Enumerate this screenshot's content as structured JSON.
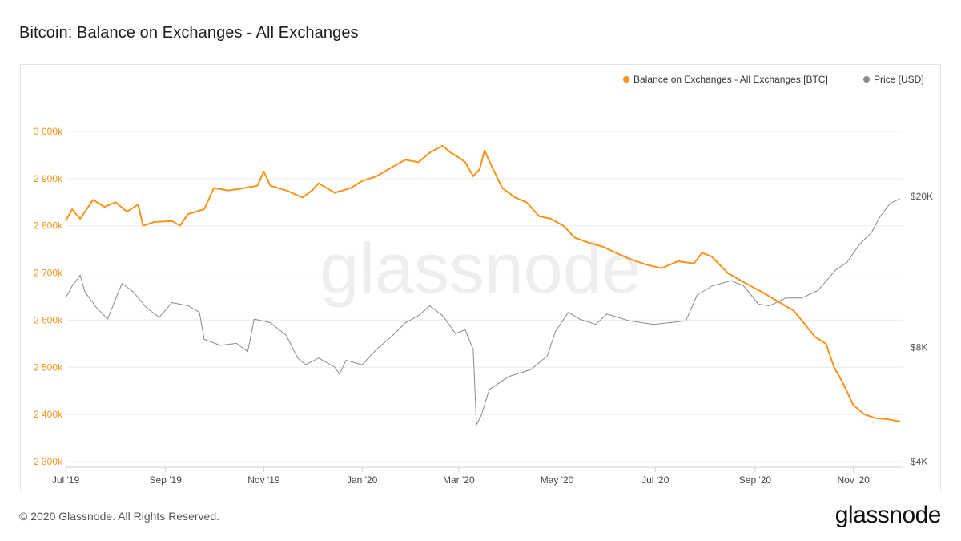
{
  "title": "Bitcoin: Balance on Exchanges - All Exchanges",
  "footer": "© 2020 Glassnode. All Rights Reserved.",
  "brand": "glassnode",
  "watermark": "glassnode",
  "colors": {
    "balance": "#f7931a",
    "price": "#8a8a8a",
    "grid": "#ececec"
  },
  "chart_data": {
    "type": "line",
    "legend_position": "top-right",
    "grid": true,
    "x_tick_labels": [
      "Jul '19",
      "Sep '19",
      "Nov '19",
      "Jan '20",
      "Mar '20",
      "May '20",
      "Jul '20",
      "Sep '20",
      "Nov '20"
    ],
    "y_left": {
      "ticks": [
        "2 300k",
        "2 400k",
        "2 500k",
        "2 600k",
        "2 700k",
        "2 800k",
        "2 900k",
        "3 000k"
      ],
      "range": [
        2300000,
        3000000
      ]
    },
    "y_right": {
      "ticks": [
        "$4K",
        "$8K",
        "$20K"
      ],
      "scale": "log"
    },
    "series": [
      {
        "name": "Balance on Exchanges - All Exchanges [BTC]",
        "axis": "left",
        "points": [
          [
            "2019-07-01",
            2810000
          ],
          [
            "2019-07-05",
            2835000
          ],
          [
            "2019-07-10",
            2815000
          ],
          [
            "2019-07-18",
            2855000
          ],
          [
            "2019-07-25",
            2840000
          ],
          [
            "2019-08-01",
            2850000
          ],
          [
            "2019-08-08",
            2830000
          ],
          [
            "2019-08-15",
            2845000
          ],
          [
            "2019-08-18",
            2800000
          ],
          [
            "2019-08-25",
            2808000
          ],
          [
            "2019-09-05",
            2810000
          ],
          [
            "2019-09-10",
            2800000
          ],
          [
            "2019-09-15",
            2825000
          ],
          [
            "2019-09-25",
            2835000
          ],
          [
            "2019-10-01",
            2880000
          ],
          [
            "2019-10-10",
            2875000
          ],
          [
            "2019-10-20",
            2880000
          ],
          [
            "2019-10-28",
            2885000
          ],
          [
            "2019-11-01",
            2915000
          ],
          [
            "2019-11-05",
            2885000
          ],
          [
            "2019-11-15",
            2875000
          ],
          [
            "2019-11-25",
            2860000
          ],
          [
            "2019-12-01",
            2875000
          ],
          [
            "2019-12-05",
            2890000
          ],
          [
            "2019-12-15",
            2870000
          ],
          [
            "2019-12-25",
            2880000
          ],
          [
            "2020-01-01",
            2895000
          ],
          [
            "2020-01-10",
            2905000
          ],
          [
            "2020-01-20",
            2925000
          ],
          [
            "2020-01-28",
            2940000
          ],
          [
            "2020-02-05",
            2935000
          ],
          [
            "2020-02-12",
            2955000
          ],
          [
            "2020-02-20",
            2970000
          ],
          [
            "2020-02-25",
            2955000
          ],
          [
            "2020-03-01",
            2945000
          ],
          [
            "2020-03-05",
            2935000
          ],
          [
            "2020-03-10",
            2905000
          ],
          [
            "2020-03-14",
            2920000
          ],
          [
            "2020-03-17",
            2960000
          ],
          [
            "2020-03-21",
            2930000
          ],
          [
            "2020-03-28",
            2880000
          ],
          [
            "2020-04-05",
            2860000
          ],
          [
            "2020-04-12",
            2850000
          ],
          [
            "2020-04-20",
            2820000
          ],
          [
            "2020-04-27",
            2815000
          ],
          [
            "2020-05-05",
            2800000
          ],
          [
            "2020-05-12",
            2775000
          ],
          [
            "2020-05-20",
            2765000
          ],
          [
            "2020-05-30",
            2755000
          ],
          [
            "2020-06-05",
            2745000
          ],
          [
            "2020-06-15",
            2730000
          ],
          [
            "2020-06-25",
            2718000
          ],
          [
            "2020-07-05",
            2710000
          ],
          [
            "2020-07-15",
            2725000
          ],
          [
            "2020-07-25",
            2720000
          ],
          [
            "2020-07-30",
            2743000
          ],
          [
            "2020-08-05",
            2735000
          ],
          [
            "2020-08-15",
            2700000
          ],
          [
            "2020-08-25",
            2680000
          ],
          [
            "2020-09-05",
            2660000
          ],
          [
            "2020-09-15",
            2640000
          ],
          [
            "2020-09-25",
            2620000
          ],
          [
            "2020-10-01",
            2595000
          ],
          [
            "2020-10-08",
            2565000
          ],
          [
            "2020-10-15",
            2550000
          ],
          [
            "2020-10-20",
            2500000
          ],
          [
            "2020-10-25",
            2470000
          ],
          [
            "2020-11-01",
            2420000
          ],
          [
            "2020-11-08",
            2400000
          ],
          [
            "2020-11-15",
            2392000
          ],
          [
            "2020-11-22",
            2390000
          ],
          [
            "2020-11-30",
            2385000
          ]
        ]
      },
      {
        "name": "Price [USD]",
        "axis": "right",
        "points": [
          [
            "2019-07-01",
            10800
          ],
          [
            "2019-07-05",
            11600
          ],
          [
            "2019-07-10",
            12400
          ],
          [
            "2019-07-13",
            11200
          ],
          [
            "2019-07-20",
            10200
          ],
          [
            "2019-07-27",
            9500
          ],
          [
            "2019-08-05",
            11800
          ],
          [
            "2019-08-12",
            11200
          ],
          [
            "2019-08-20",
            10200
          ],
          [
            "2019-08-28",
            9600
          ],
          [
            "2019-09-05",
            10500
          ],
          [
            "2019-09-15",
            10300
          ],
          [
            "2019-09-22",
            9900
          ],
          [
            "2019-09-25",
            8400
          ],
          [
            "2019-10-05",
            8100
          ],
          [
            "2019-10-15",
            8200
          ],
          [
            "2019-10-22",
            7800
          ],
          [
            "2019-10-26",
            9500
          ],
          [
            "2019-11-05",
            9300
          ],
          [
            "2019-11-15",
            8600
          ],
          [
            "2019-11-22",
            7500
          ],
          [
            "2019-11-27",
            7200
          ],
          [
            "2019-12-05",
            7500
          ],
          [
            "2019-12-15",
            7100
          ],
          [
            "2019-12-18",
            6800
          ],
          [
            "2019-12-22",
            7400
          ],
          [
            "2020-01-01",
            7200
          ],
          [
            "2020-01-10",
            7900
          ],
          [
            "2020-01-20",
            8600
          ],
          [
            "2020-01-28",
            9300
          ],
          [
            "2020-02-05",
            9700
          ],
          [
            "2020-02-12",
            10300
          ],
          [
            "2020-02-20",
            9700
          ],
          [
            "2020-02-28",
            8700
          ],
          [
            "2020-03-05",
            8900
          ],
          [
            "2020-03-10",
            7900
          ],
          [
            "2020-03-12",
            5000
          ],
          [
            "2020-03-15",
            5300
          ],
          [
            "2020-03-20",
            6200
          ],
          [
            "2020-04-01",
            6700
          ],
          [
            "2020-04-15",
            7000
          ],
          [
            "2020-04-25",
            7600
          ],
          [
            "2020-04-30",
            8800
          ],
          [
            "2020-05-08",
            9900
          ],
          [
            "2020-05-15",
            9500
          ],
          [
            "2020-05-25",
            9200
          ],
          [
            "2020-06-01",
            9800
          ],
          [
            "2020-06-15",
            9400
          ],
          [
            "2020-06-30",
            9200
          ],
          [
            "2020-07-10",
            9300
          ],
          [
            "2020-07-20",
            9400
          ],
          [
            "2020-07-27",
            11000
          ],
          [
            "2020-08-05",
            11600
          ],
          [
            "2020-08-17",
            12000
          ],
          [
            "2020-08-25",
            11600
          ],
          [
            "2020-09-03",
            10400
          ],
          [
            "2020-09-10",
            10300
          ],
          [
            "2020-09-20",
            10800
          ],
          [
            "2020-09-30",
            10800
          ],
          [
            "2020-10-10",
            11300
          ],
          [
            "2020-10-21",
            12800
          ],
          [
            "2020-10-28",
            13400
          ],
          [
            "2020-11-05",
            15000
          ],
          [
            "2020-11-12",
            16000
          ],
          [
            "2020-11-18",
            17800
          ],
          [
            "2020-11-24",
            19200
          ],
          [
            "2020-11-30",
            19700
          ]
        ]
      }
    ]
  }
}
